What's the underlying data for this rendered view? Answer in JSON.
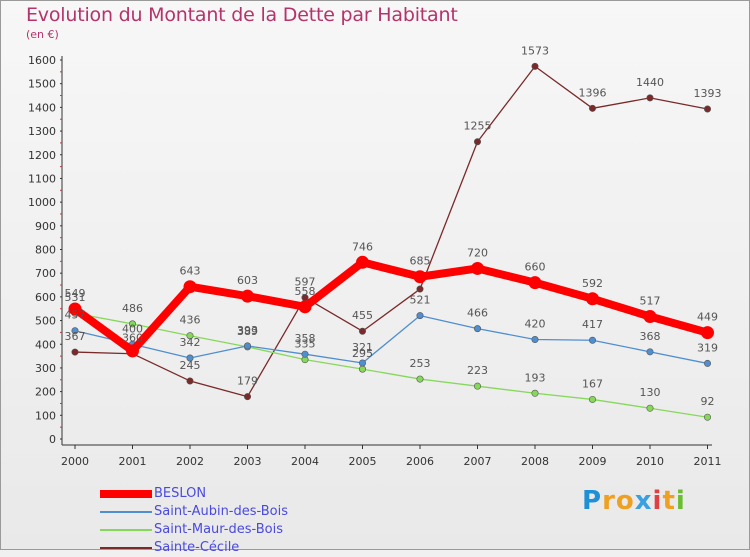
{
  "title": "Evolution du Montant de la Dette par Habitant",
  "subtitle": "(en €)",
  "logo": {
    "text": "Proxiti",
    "letters": [
      "P",
      "r",
      "o",
      "x",
      "i",
      "t",
      "i"
    ],
    "colors": [
      "#1f8fd6",
      "#f0a020",
      "#f0a020",
      "#3aa0e0",
      "#e04040",
      "#f0a020",
      "#6abf30"
    ]
  },
  "chart_data": {
    "type": "line",
    "title": "Evolution du Montant de la Dette par Habitant",
    "ylabel": "(en €)",
    "xlabel": "",
    "ylim": [
      0,
      1600
    ],
    "yticks": [
      0,
      100,
      200,
      300,
      400,
      500,
      600,
      700,
      800,
      900,
      1000,
      1100,
      1200,
      1300,
      1400,
      1500,
      1600
    ],
    "grid": false,
    "legend": "bottom-left",
    "x": [
      "2000",
      "2001",
      "2002",
      "2003",
      "2004",
      "2005",
      "2006",
      "2007",
      "2008",
      "2009",
      "2010",
      "2011"
    ],
    "series": [
      {
        "name": "BESLON",
        "color": "#ff0000",
        "values": [
          549,
          372,
          643,
          603,
          558,
          746,
          685,
          720,
          660,
          592,
          517,
          449
        ],
        "labels": [
          "549",
          "",
          "643",
          "603",
          "558",
          "746",
          "685",
          "720",
          "660",
          "592",
          "517",
          "449"
        ]
      },
      {
        "name": "Saint-Aubin-des-Bois",
        "color": "#4f8fd0",
        "values": [
          457,
          400,
          342,
          393,
          358,
          321,
          521,
          466,
          420,
          417,
          368,
          319
        ],
        "labels": [
          "457",
          "400",
          "342",
          "393",
          "358",
          "321",
          "521",
          "466",
          "420",
          "417",
          "368",
          "319"
        ]
      },
      {
        "name": "Saint-Maur-des-Bois",
        "color": "#86d85a",
        "values": [
          531,
          486,
          436,
          389,
          335,
          295,
          253,
          223,
          193,
          167,
          130,
          92
        ],
        "labels": [
          "531",
          "486",
          "436",
          "389",
          "335",
          "295",
          "253",
          "223",
          "193",
          "167",
          "130",
          "92"
        ]
      },
      {
        "name": "Sainte-Cécile",
        "color": "#7a2a2a",
        "values": [
          367,
          360,
          245,
          179,
          597,
          455,
          633,
          1255,
          1573,
          1396,
          1440,
          1393
        ],
        "labels": [
          "367",
          "360",
          "245",
          "179",
          "597",
          "455",
          "",
          "1255",
          "1573",
          "1396",
          "1440",
          "1393"
        ]
      }
    ]
  }
}
